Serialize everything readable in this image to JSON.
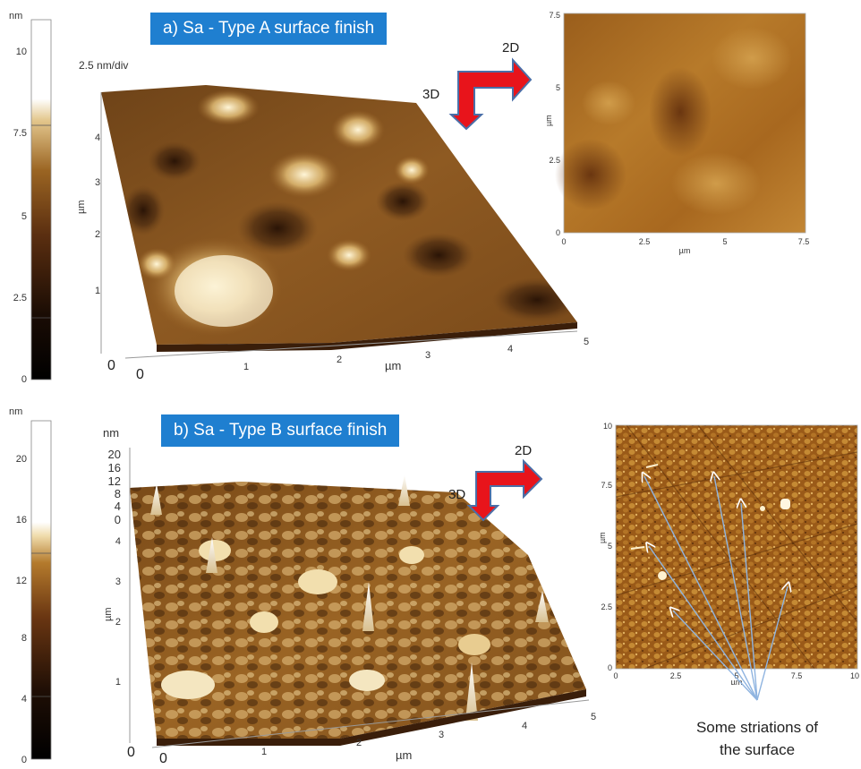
{
  "panel_a": {
    "title": "a) Sa - Type A surface finish",
    "scale_label": "2.5 nm/div",
    "colorbar": {
      "unit": "nm",
      "ticks": [
        "10",
        "7.5",
        "5",
        "2.5",
        "0"
      ]
    },
    "axis_3d": {
      "x_ticks": [
        "0",
        "1",
        "2",
        "3",
        "4",
        "5"
      ],
      "y_ticks": [
        "1",
        "2",
        "3",
        "4"
      ],
      "z_zero": "0",
      "x_label": "µm",
      "y_label": "µm"
    },
    "arrow": {
      "label_2d": "2D",
      "label_3d": "3D"
    },
    "map_2d": {
      "x_ticks": [
        "0",
        "2.5",
        "5",
        "7.5"
      ],
      "y_ticks": [
        "0",
        "2.5",
        "5",
        "7.5"
      ],
      "x_label": "µm",
      "y_label": "µm"
    }
  },
  "panel_b": {
    "title": "b) Sa - Type B surface finish",
    "colorbar": {
      "unit": "nm",
      "ticks": [
        "20",
        "16",
        "12",
        "8",
        "4",
        "0"
      ]
    },
    "z_axis": {
      "unit": "nm",
      "ticks": [
        "20",
        "16",
        "12",
        "8",
        "4",
        "0"
      ]
    },
    "axis_3d": {
      "x_ticks": [
        "0",
        "1",
        "2",
        "3",
        "4",
        "5"
      ],
      "y_ticks": [
        "1",
        "2",
        "3",
        "4"
      ],
      "z_zero": "0",
      "x_label": "µm",
      "y_label": "µm"
    },
    "arrow": {
      "label_2d": "2D",
      "label_3d": "3D"
    },
    "map_2d": {
      "x_ticks": [
        "0",
        "2.5",
        "5",
        "7.5",
        "10"
      ],
      "y_ticks": [
        "0",
        "2.5",
        "5",
        "7.5",
        "10"
      ],
      "x_label": "µm",
      "y_label": "µm"
    },
    "callout": {
      "line1": "Some striations of",
      "line2": "the surface"
    }
  },
  "colors": {
    "title_bg": "#1f7fd0",
    "arrow_fill": "#e8141b",
    "arrow_edge": "#4a6fa8",
    "surface_dark": "#3a1e0a",
    "surface_mid": "#8a5a22",
    "surface_light": "#f4e3b4",
    "striation_line": "#8fb4e0"
  }
}
